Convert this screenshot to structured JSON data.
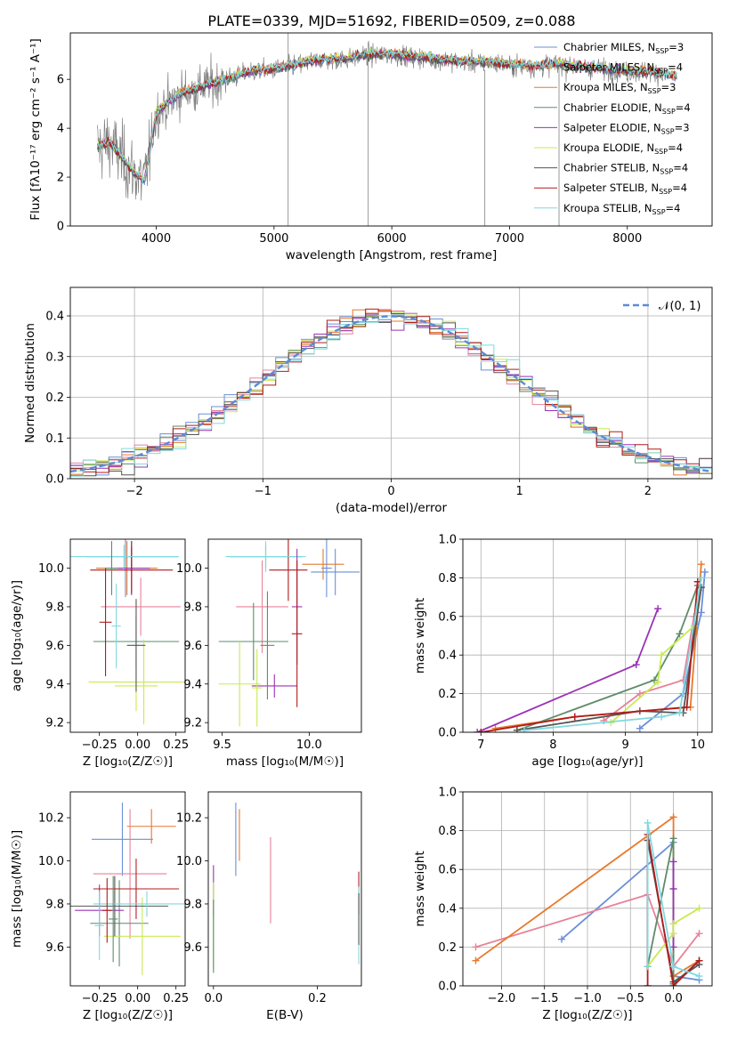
{
  "title": "PLATE=0339, MJD=51692, FIBERID=0509, z=0.088",
  "series": [
    {
      "imf": "Chabrier",
      "lib": "MILES",
      "nssp": 3,
      "color": "#6a8fd8"
    },
    {
      "imf": "Salpeter",
      "lib": "MILES",
      "nssp": 4,
      "color": "#e7829a"
    },
    {
      "imf": "Kroupa",
      "lib": "MILES",
      "nssp": 3,
      "color": "#e8782b"
    },
    {
      "imf": "Chabrier",
      "lib": "ELODIE",
      "nssp": 4,
      "color": "#5e8c6a"
    },
    {
      "imf": "Salpeter",
      "lib": "ELODIE",
      "nssp": 3,
      "color": "#9a33b5"
    },
    {
      "imf": "Kroupa",
      "lib": "ELODIE",
      "nssp": 4,
      "color": "#c8ea52"
    },
    {
      "imf": "Chabrier",
      "lib": "STELIB",
      "nssp": 4,
      "color": "#555555"
    },
    {
      "imf": "Salpeter",
      "lib": "STELIB",
      "nssp": 4,
      "color": "#b01c1c"
    },
    {
      "imf": "Kroupa",
      "lib": "STELIB",
      "nssp": 4,
      "color": "#7fd9e0"
    }
  ],
  "nssp_prefix": "N",
  "nssp_sub": "SSP",
  "chart_data": [
    {
      "type": "line",
      "xlabel": "wavelength [Angstrom, rest frame]",
      "ylabel": "Flux [fλ10⁻¹⁷ erg cm⁻² s⁻¹ A⁻¹]",
      "xlim": [
        3270,
        8720
      ],
      "ylim": [
        0,
        7.9
      ],
      "xticks": [
        4000,
        5000,
        6000,
        7000,
        8000
      ],
      "yticks": [
        0,
        2,
        4,
        6
      ],
      "data_color": "#808080",
      "spectrum_x": [
        3500,
        3600,
        3700,
        3800,
        3900,
        4000,
        4100,
        4200,
        4400,
        4600,
        4800,
        5000,
        5200,
        5400,
        5600,
        5800,
        6000,
        6200,
        6400,
        6600,
        6800,
        7000,
        7200,
        7400,
        7600,
        7800,
        8000,
        8200,
        8400
      ],
      "spectrum_y": [
        3.2,
        3.4,
        2.8,
        2.2,
        1.8,
        4.6,
        5.0,
        5.4,
        5.7,
        6.0,
        6.3,
        6.4,
        6.6,
        6.8,
        6.8,
        7.0,
        7.0,
        6.9,
        6.8,
        6.7,
        6.7,
        6.6,
        6.5,
        6.6,
        6.5,
        6.4,
        6.3,
        6.3,
        6.1
      ],
      "grid": false,
      "legend": "top-right"
    },
    {
      "type": "histogram",
      "xlabel": "(data-model)/error",
      "ylabel": "Normed distribution",
      "xlim": [
        -2.5,
        2.5
      ],
      "ylim": [
        0,
        0.47
      ],
      "xticks": [
        -2,
        -1,
        0,
        1,
        2
      ],
      "yticks": [
        0,
        0.1,
        0.2,
        0.3,
        0.4
      ],
      "legend_label": "𝒩(0, 1)",
      "gaussian": {
        "mean": 0,
        "sigma": 1,
        "color": "#5e8ad6"
      },
      "grid": true,
      "legend": "top-right"
    },
    {
      "type": "scatter",
      "xlabel": "Z [log₁₀(Z/Z☉)]",
      "ylabel": "age  [log₁₀(age/yr)]",
      "xlim": [
        -0.44,
        0.31
      ],
      "ylim": [
        9.15,
        10.15
      ],
      "xticks": [
        -0.25,
        0,
        0.25
      ],
      "xticklabels": [
        "−0.25",
        "0.00",
        "0.25"
      ],
      "yticks": [
        9.2,
        9.4,
        9.6,
        9.8,
        10.0
      ],
      "points": [
        {
          "s": 0,
          "x": -0.08,
          "y": 10.0,
          "xerr": 0.19,
          "yerr": 0.15
        },
        {
          "s": 1,
          "x": 0.02,
          "y": 9.8,
          "xerr": 0.26,
          "yerr": 0.15
        },
        {
          "s": 2,
          "x": -0.07,
          "y": 10.0,
          "xerr": 0.2,
          "yerr": 0.14
        },
        {
          "s": 3,
          "x": -0.01,
          "y": 9.62,
          "xerr": 0.28,
          "yerr": 0.13
        },
        {
          "s": 4,
          "x": -0.04,
          "y": 10.0,
          "xerr": 0.12,
          "yerr": 0.14
        },
        {
          "s": 5,
          "x": -0.01,
          "y": 9.39,
          "xerr": 0.14,
          "yerr": 0.13
        },
        {
          "s": 6,
          "x": -0.04,
          "y": 10.06,
          "xerr": 0.3,
          "yerr": 0.08
        },
        {
          "s": 7,
          "x": -0.04,
          "y": 9.99,
          "xerr": 0.27,
          "yerr": 0.12
        },
        {
          "s": 8,
          "x": -0.09,
          "y": 10.06,
          "xerr": 0.36,
          "yerr": 0.06
        },
        {
          "s": 5,
          "x": 0.04,
          "y": 9.41,
          "xerr": 0.36,
          "yerr": 0.22
        },
        {
          "s": 3,
          "x": -0.17,
          "y": 10.0,
          "xerr": 0.04,
          "yerr": 0.14
        },
        {
          "s": 8,
          "x": -0.14,
          "y": 9.7,
          "xerr": 0.03,
          "yerr": 0.22
        },
        {
          "s": 6,
          "x": -0.01,
          "y": 9.6,
          "xerr": 0.06,
          "yerr": 0.24
        },
        {
          "s": 7,
          "x": -0.21,
          "y": 9.72,
          "xerr": 0.04,
          "yerr": 0.28
        }
      ]
    },
    {
      "type": "scatter",
      "xlabel": "mass [log₁₀(M/M☉)]",
      "ylabel": "",
      "xlim": [
        9.42,
        10.3
      ],
      "ylim": [
        9.15,
        10.15
      ],
      "xticks": [
        9.5,
        10.0
      ],
      "xticklabels": [
        "9.5",
        "10.0"
      ],
      "yticks": [
        9.2,
        9.4,
        9.6,
        9.8,
        10.0
      ],
      "points": [
        {
          "s": 0,
          "x": 10.15,
          "y": 9.98,
          "xerr": 0.14,
          "yerr": 0.12
        },
        {
          "s": 1,
          "x": 9.73,
          "y": 9.8,
          "xerr": 0.15,
          "yerr": 0.24
        },
        {
          "s": 2,
          "x": 10.08,
          "y": 10.02,
          "xerr": 0.12,
          "yerr": 0.08
        },
        {
          "s": 3,
          "x": 9.68,
          "y": 9.62,
          "xerr": 0.2,
          "yerr": 0.2
        },
        {
          "s": 4,
          "x": 9.8,
          "y": 9.39,
          "xerr": 0.13,
          "yerr": 0.06
        },
        {
          "s": 5,
          "x": 9.6,
          "y": 9.4,
          "xerr": 0.12,
          "yerr": 0.22
        },
        {
          "s": 6,
          "x": 9.75,
          "y": 10.06,
          "xerr": 0.21,
          "yerr": 0.06
        },
        {
          "s": 7,
          "x": 9.88,
          "y": 9.99,
          "xerr": 0.11,
          "yerr": 0.16
        },
        {
          "s": 8,
          "x": 9.75,
          "y": 10.06,
          "xerr": 0.23,
          "yerr": 0.08
        },
        {
          "s": 3,
          "x": 9.76,
          "y": 9.6,
          "xerr": 0.04,
          "yerr": 0.28
        },
        {
          "s": 0,
          "x": 10.1,
          "y": 10.0,
          "xerr": 0.03,
          "yerr": 0.15
        },
        {
          "s": 4,
          "x": 9.93,
          "y": 9.8,
          "xerr": 0.03,
          "yerr": 0.3
        },
        {
          "s": 5,
          "x": 9.7,
          "y": 9.38,
          "xerr": 0.03,
          "yerr": 0.2
        },
        {
          "s": 7,
          "x": 9.93,
          "y": 9.66,
          "xerr": 0.03,
          "yerr": 0.38
        }
      ]
    },
    {
      "type": "line",
      "xlabel": "age  [log₁₀(age/yr)]",
      "ylabel": "mass weight",
      "xlim": [
        6.75,
        10.2
      ],
      "ylim": [
        0,
        1
      ],
      "xticks": [
        7,
        8,
        9,
        10
      ],
      "yticks": [
        0,
        0.2,
        0.4,
        0.6,
        0.8,
        1.0
      ],
      "grid": true,
      "lines": [
        {
          "s": 0,
          "x": [
            9.2,
            9.8,
            10.05,
            10.1
          ],
          "y": [
            0.02,
            0.2,
            0.62,
            0.83
          ]
        },
        {
          "s": 1,
          "x": [
            8.7,
            9.2,
            9.8,
            9.95
          ],
          "y": [
            0.06,
            0.2,
            0.27,
            0.6
          ]
        },
        {
          "s": 2,
          "x": [
            7.2,
            8.3,
            9.9,
            10.05
          ],
          "y": [
            0.02,
            0.08,
            0.13,
            0.87
          ]
        },
        {
          "s": 3,
          "x": [
            7.5,
            9.4,
            9.75,
            10.0
          ],
          "y": [
            0.01,
            0.27,
            0.51,
            0.76
          ]
        },
        {
          "s": 4,
          "x": [
            6.95,
            9.15,
            9.45
          ],
          "y": [
            0.0,
            0.35,
            0.64
          ]
        },
        {
          "s": 5,
          "x": [
            8.8,
            9.45,
            9.5,
            9.95
          ],
          "y": [
            0.05,
            0.26,
            0.4,
            0.55
          ]
        },
        {
          "s": 6,
          "x": [
            7.5,
            9.2,
            9.8,
            10.05
          ],
          "y": [
            0.01,
            0.11,
            0.1,
            0.75
          ]
        },
        {
          "s": 7,
          "x": [
            7.0,
            8.3,
            9.85,
            10.0
          ],
          "y": [
            0.0,
            0.08,
            0.13,
            0.78
          ]
        },
        {
          "s": 8,
          "x": [
            7.6,
            9.5,
            9.75,
            10.05
          ],
          "y": [
            0.01,
            0.08,
            0.1,
            0.8
          ]
        }
      ]
    },
    {
      "type": "scatter",
      "xlabel": "Z [log₁₀(Z/Z☉)]",
      "ylabel": "mass [log₁₀(M/M☉)]",
      "xlim": [
        -0.44,
        0.31
      ],
      "ylim": [
        9.42,
        10.32
      ],
      "xticks": [
        -0.25,
        0,
        0.25
      ],
      "xticklabels": [
        "−0.25",
        "0.00",
        "0.25"
      ],
      "yticks": [
        9.6,
        9.8,
        10.0,
        10.2
      ],
      "points": [
        {
          "s": 0,
          "x": -0.1,
          "y": 10.1,
          "xerr": 0.2,
          "yerr": 0.17
        },
        {
          "s": 2,
          "x": 0.09,
          "y": 10.16,
          "xerr": 0.16,
          "yerr": 0.08
        },
        {
          "s": 1,
          "x": -0.05,
          "y": 9.94,
          "xerr": 0.24,
          "yerr": 0.3
        },
        {
          "s": 3,
          "x": -0.12,
          "y": 9.71,
          "xerr": 0.19,
          "yerr": 0.2
        },
        {
          "s": 4,
          "x": -0.25,
          "y": 9.77,
          "xerr": 0.16,
          "yerr": 0.12
        },
        {
          "s": 5,
          "x": 0.03,
          "y": 9.65,
          "xerr": 0.25,
          "yerr": 0.18
        },
        {
          "s": 6,
          "x": -0.15,
          "y": 9.79,
          "xerr": 0.35,
          "yerr": 0.14
        },
        {
          "s": 7,
          "x": -0.01,
          "y": 9.87,
          "xerr": 0.28,
          "yerr": 0.14
        },
        {
          "s": 8,
          "x": 0.06,
          "y": 9.8,
          "xerr": 0.35,
          "yerr": 0.06
        },
        {
          "s": 3,
          "x": -0.16,
          "y": 9.73,
          "xerr": 0.03,
          "yerr": 0.2
        },
        {
          "s": 7,
          "x": -0.2,
          "y": 9.77,
          "xerr": 0.03,
          "yerr": 0.15
        },
        {
          "s": 8,
          "x": -0.25,
          "y": 9.7,
          "xerr": 0.03,
          "yerr": 0.16
        }
      ]
    },
    {
      "type": "scatter",
      "xlabel": "E(B-V)",
      "ylabel": "",
      "xlim": [
        -0.01,
        0.285
      ],
      "ylim": [
        9.42,
        10.32
      ],
      "xticks": [
        0,
        0.2
      ],
      "xticklabels": [
        "0.0",
        "0.2"
      ],
      "yticks": [
        9.6,
        9.8,
        10.0,
        10.2
      ],
      "points": [
        {
          "s": 0,
          "x": 0.043,
          "y": 10.1,
          "xerr": 0,
          "yerr": 0.17
        },
        {
          "s": 2,
          "x": 0.05,
          "y": 10.12,
          "xerr": 0,
          "yerr": 0.12
        },
        {
          "s": 1,
          "x": 0.11,
          "y": 9.91,
          "xerr": 0,
          "yerr": 0.2
        },
        {
          "s": 4,
          "x": 0.0,
          "y": 9.86,
          "xerr": 0,
          "yerr": 0.12
        },
        {
          "s": 5,
          "x": 0.0,
          "y": 9.7,
          "xerr": 0,
          "yerr": 0.2
        },
        {
          "s": 3,
          "x": 0.0,
          "y": 9.65,
          "xerr": 0,
          "yerr": 0.17
        },
        {
          "s": 7,
          "x": 0.28,
          "y": 9.85,
          "xerr": 0,
          "yerr": 0.1
        },
        {
          "s": 8,
          "x": 0.28,
          "y": 9.7,
          "xerr": 0,
          "yerr": 0.18
        },
        {
          "s": 6,
          "x": 0.28,
          "y": 9.73,
          "xerr": 0,
          "yerr": 0.12
        }
      ]
    },
    {
      "type": "line",
      "xlabel": "Z [log₁₀(Z/Z☉)]",
      "ylabel": "mass weight",
      "xlim": [
        -2.45,
        0.45
      ],
      "ylim": [
        0,
        1
      ],
      "xticks": [
        -2.0,
        -1.5,
        -1.0,
        -0.5,
        0.0
      ],
      "xticklabels": [
        "−2.0",
        "−1.5",
        "−1.0",
        "−0.5",
        "0.0"
      ],
      "yticks": [
        0,
        0.2,
        0.4,
        0.6,
        0.8,
        1.0
      ],
      "grid": true,
      "lines": [
        {
          "s": 0,
          "x": [
            -1.3,
            0.0,
            0.0,
            0.3
          ],
          "y": [
            0.24,
            0.74,
            0.05,
            0.03
          ]
        },
        {
          "s": 1,
          "x": [
            -2.3,
            -0.3,
            0.0,
            0.3
          ],
          "y": [
            0.2,
            0.47,
            0.1,
            0.27
          ]
        },
        {
          "s": 2,
          "x": [
            -2.3,
            0.0,
            0.0,
            0.3
          ],
          "y": [
            0.13,
            0.87,
            0.05,
            0.13
          ]
        },
        {
          "s": 3,
          "x": [
            -0.3,
            0.0,
            0.0,
            0.3
          ],
          "y": [
            0.1,
            0.76,
            0.01,
            0.13
          ]
        },
        {
          "s": 4,
          "x": [
            0.0,
            0.0,
            0.0
          ],
          "y": [
            0.64,
            0.2,
            0.5
          ]
        },
        {
          "s": 5,
          "x": [
            -0.3,
            0.0,
            0.0,
            0.3
          ],
          "y": [
            0.1,
            0.27,
            0.32,
            0.4
          ]
        },
        {
          "s": 6,
          "x": [
            -0.3,
            -0.3,
            0.0,
            0.3
          ],
          "y": [
            0.1,
            0.75,
            0.02,
            0.11
          ]
        },
        {
          "s": 7,
          "x": [
            -0.3,
            -0.3,
            0.0,
            0.3
          ],
          "y": [
            0.0,
            0.78,
            0.0,
            0.13
          ]
        },
        {
          "s": 8,
          "x": [
            -0.3,
            -0.3,
            0.0,
            0.3
          ],
          "y": [
            0.1,
            0.84,
            0.1,
            0.05
          ]
        }
      ]
    }
  ]
}
